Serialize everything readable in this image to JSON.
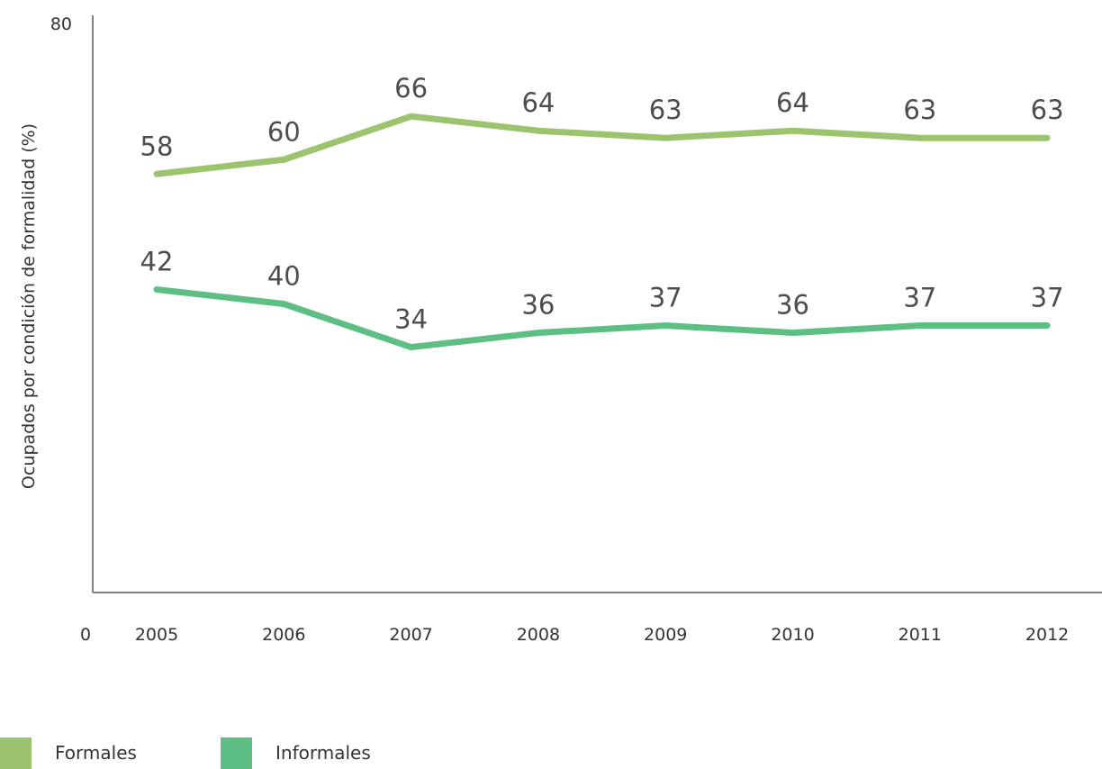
{
  "chart_data": {
    "type": "line",
    "categories": [
      "2005",
      "2006",
      "2007",
      "2008",
      "2009",
      "2010",
      "2011",
      "2012"
    ],
    "series": [
      {
        "name": "Formales",
        "values": [
          58,
          60,
          66,
          64,
          63,
          64,
          63,
          63
        ],
        "color": "#9cc46f"
      },
      {
        "name": "Informales",
        "values": [
          42,
          40,
          34,
          36,
          37,
          36,
          37,
          37
        ],
        "color": "#5ebf85"
      }
    ],
    "title": "",
    "xlabel": "",
    "ylabel": "Ocupados por condición de formalidad (%)",
    "ylim": [
      0,
      80
    ],
    "y_ticks": [
      "0",
      "80"
    ],
    "grid": false,
    "legend_position": "bottom-left"
  }
}
